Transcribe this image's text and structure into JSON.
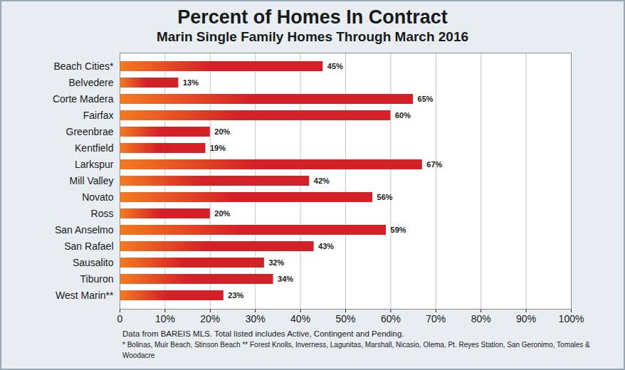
{
  "chart_data": {
    "type": "bar",
    "orientation": "horizontal",
    "title": "Percent of Homes In Contract",
    "subtitle": "Marin Single Family Homes Through March 2016",
    "categories": [
      "Beach Cities*",
      "Belvedere",
      "Corte Madera",
      "Fairfax",
      "Greenbrae",
      "Kentfield",
      "Larkspur",
      "Mill Valley",
      "Novato",
      "Ross",
      "San Anselmo",
      "San Rafael",
      "Sausalito",
      "Tiburon",
      "West Marin**"
    ],
    "values": [
      45,
      13,
      65,
      60,
      20,
      19,
      67,
      42,
      56,
      20,
      59,
      43,
      32,
      34,
      23
    ],
    "value_labels": [
      "45%",
      "13%",
      "65%",
      "60%",
      "20%",
      "19%",
      "67%",
      "42%",
      "56%",
      "20%",
      "59%",
      "43%",
      "32%",
      "34%",
      "23%"
    ],
    "data_labels": true,
    "color": "#d42027",
    "xlim": [
      0,
      100
    ],
    "xticks": [
      0,
      {
        "value": 10,
        "label": "10%"
      },
      {
        "value": 20,
        "label": "20%"
      },
      {
        "value": 30,
        "label": "30%"
      },
      {
        "value": 40,
        "label": "40%"
      },
      {
        "value": 50,
        "label": "50%"
      },
      {
        "value": 60,
        "label": "60%"
      },
      {
        "value": 70,
        "label": "70%"
      },
      {
        "value": 80,
        "label": "80%"
      },
      {
        "value": 90,
        "label": "90%"
      },
      {
        "value": 100,
        "label": "100%"
      }
    ],
    "grid": true,
    "annotations": [
      "Data from BAREIS MLS. Total listed includes Active, Contingent and Pending.",
      "* Bolinas, Muir Beach, Stinson Beach     ** Forest Knolls, Inverness, Lagunitas, Marshall, Nicasio, Olema, Pt. Reyes Station, San Geronimo, Tomales & Woodacre"
    ]
  }
}
